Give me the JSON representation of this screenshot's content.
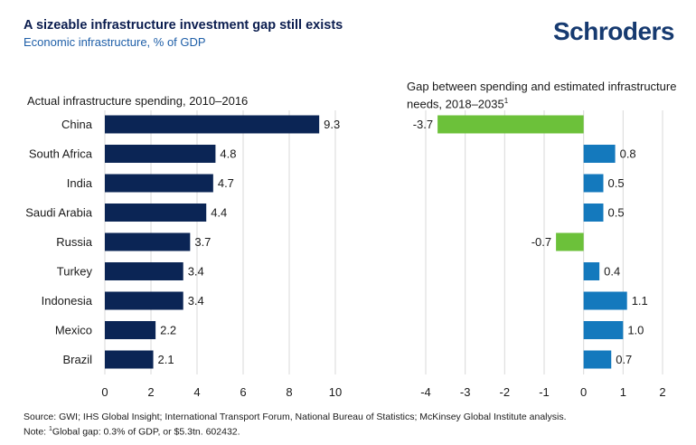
{
  "header": {
    "title": "A sizeable infrastructure investment gap still exists",
    "subtitle": "Economic infrastructure, % of GDP",
    "logo": "Schroders"
  },
  "footer": {
    "source": "Source: GWI; IHS Global Insight; International Transport Forum, National Bureau of Statistics; McKinsey Global Institute analysis.",
    "note_prefix": "Note: ",
    "note_sup": "1",
    "note_text": "Global gap: 0.3% of GDP, or $5.3tn. 602432."
  },
  "colors": {
    "navy": "#0b2555",
    "blue": "#1479bd",
    "green": "#6cc13a",
    "grid": "#d9d9d9"
  },
  "chart_data": [
    {
      "type": "bar",
      "orientation": "horizontal",
      "title": "Actual infrastructure spending, 2010–2016",
      "categories": [
        "China",
        "South Africa",
        "India",
        "Saudi Arabia",
        "Russia",
        "Turkey",
        "Indonesia",
        "Mexico",
        "Brazil"
      ],
      "values": [
        9.3,
        4.8,
        4.7,
        4.4,
        3.7,
        3.4,
        3.4,
        2.2,
        2.1
      ],
      "labels": [
        "9.3",
        "4.8",
        "4.7",
        "4.4",
        "3.7",
        "3.4",
        "3.4",
        "2.2",
        "2.1"
      ],
      "xlim": [
        0,
        10
      ],
      "xticks": [
        0,
        2,
        4,
        6,
        8,
        10
      ],
      "grid": true
    },
    {
      "type": "bar",
      "orientation": "horizontal",
      "title": "Gap between spending and estimated infrastructure needs, 2018–2035",
      "title_sup": "1",
      "categories": [
        "China",
        "South Africa",
        "India",
        "Saudi Arabia",
        "Russia",
        "Turkey",
        "Indonesia",
        "Mexico",
        "Brazil"
      ],
      "values": [
        -3.7,
        0.8,
        0.5,
        0.5,
        -0.7,
        0.4,
        1.1,
        1.0,
        0.7
      ],
      "labels": [
        "-3.7",
        "0.8",
        "0.5",
        "0.5",
        "-0.7",
        "0.4",
        "1.1",
        "1.0",
        "0.7"
      ],
      "xlim": [
        -4,
        2
      ],
      "xticks": [
        -4,
        -3,
        -2,
        -1,
        0,
        1,
        2
      ],
      "grid": true
    }
  ]
}
